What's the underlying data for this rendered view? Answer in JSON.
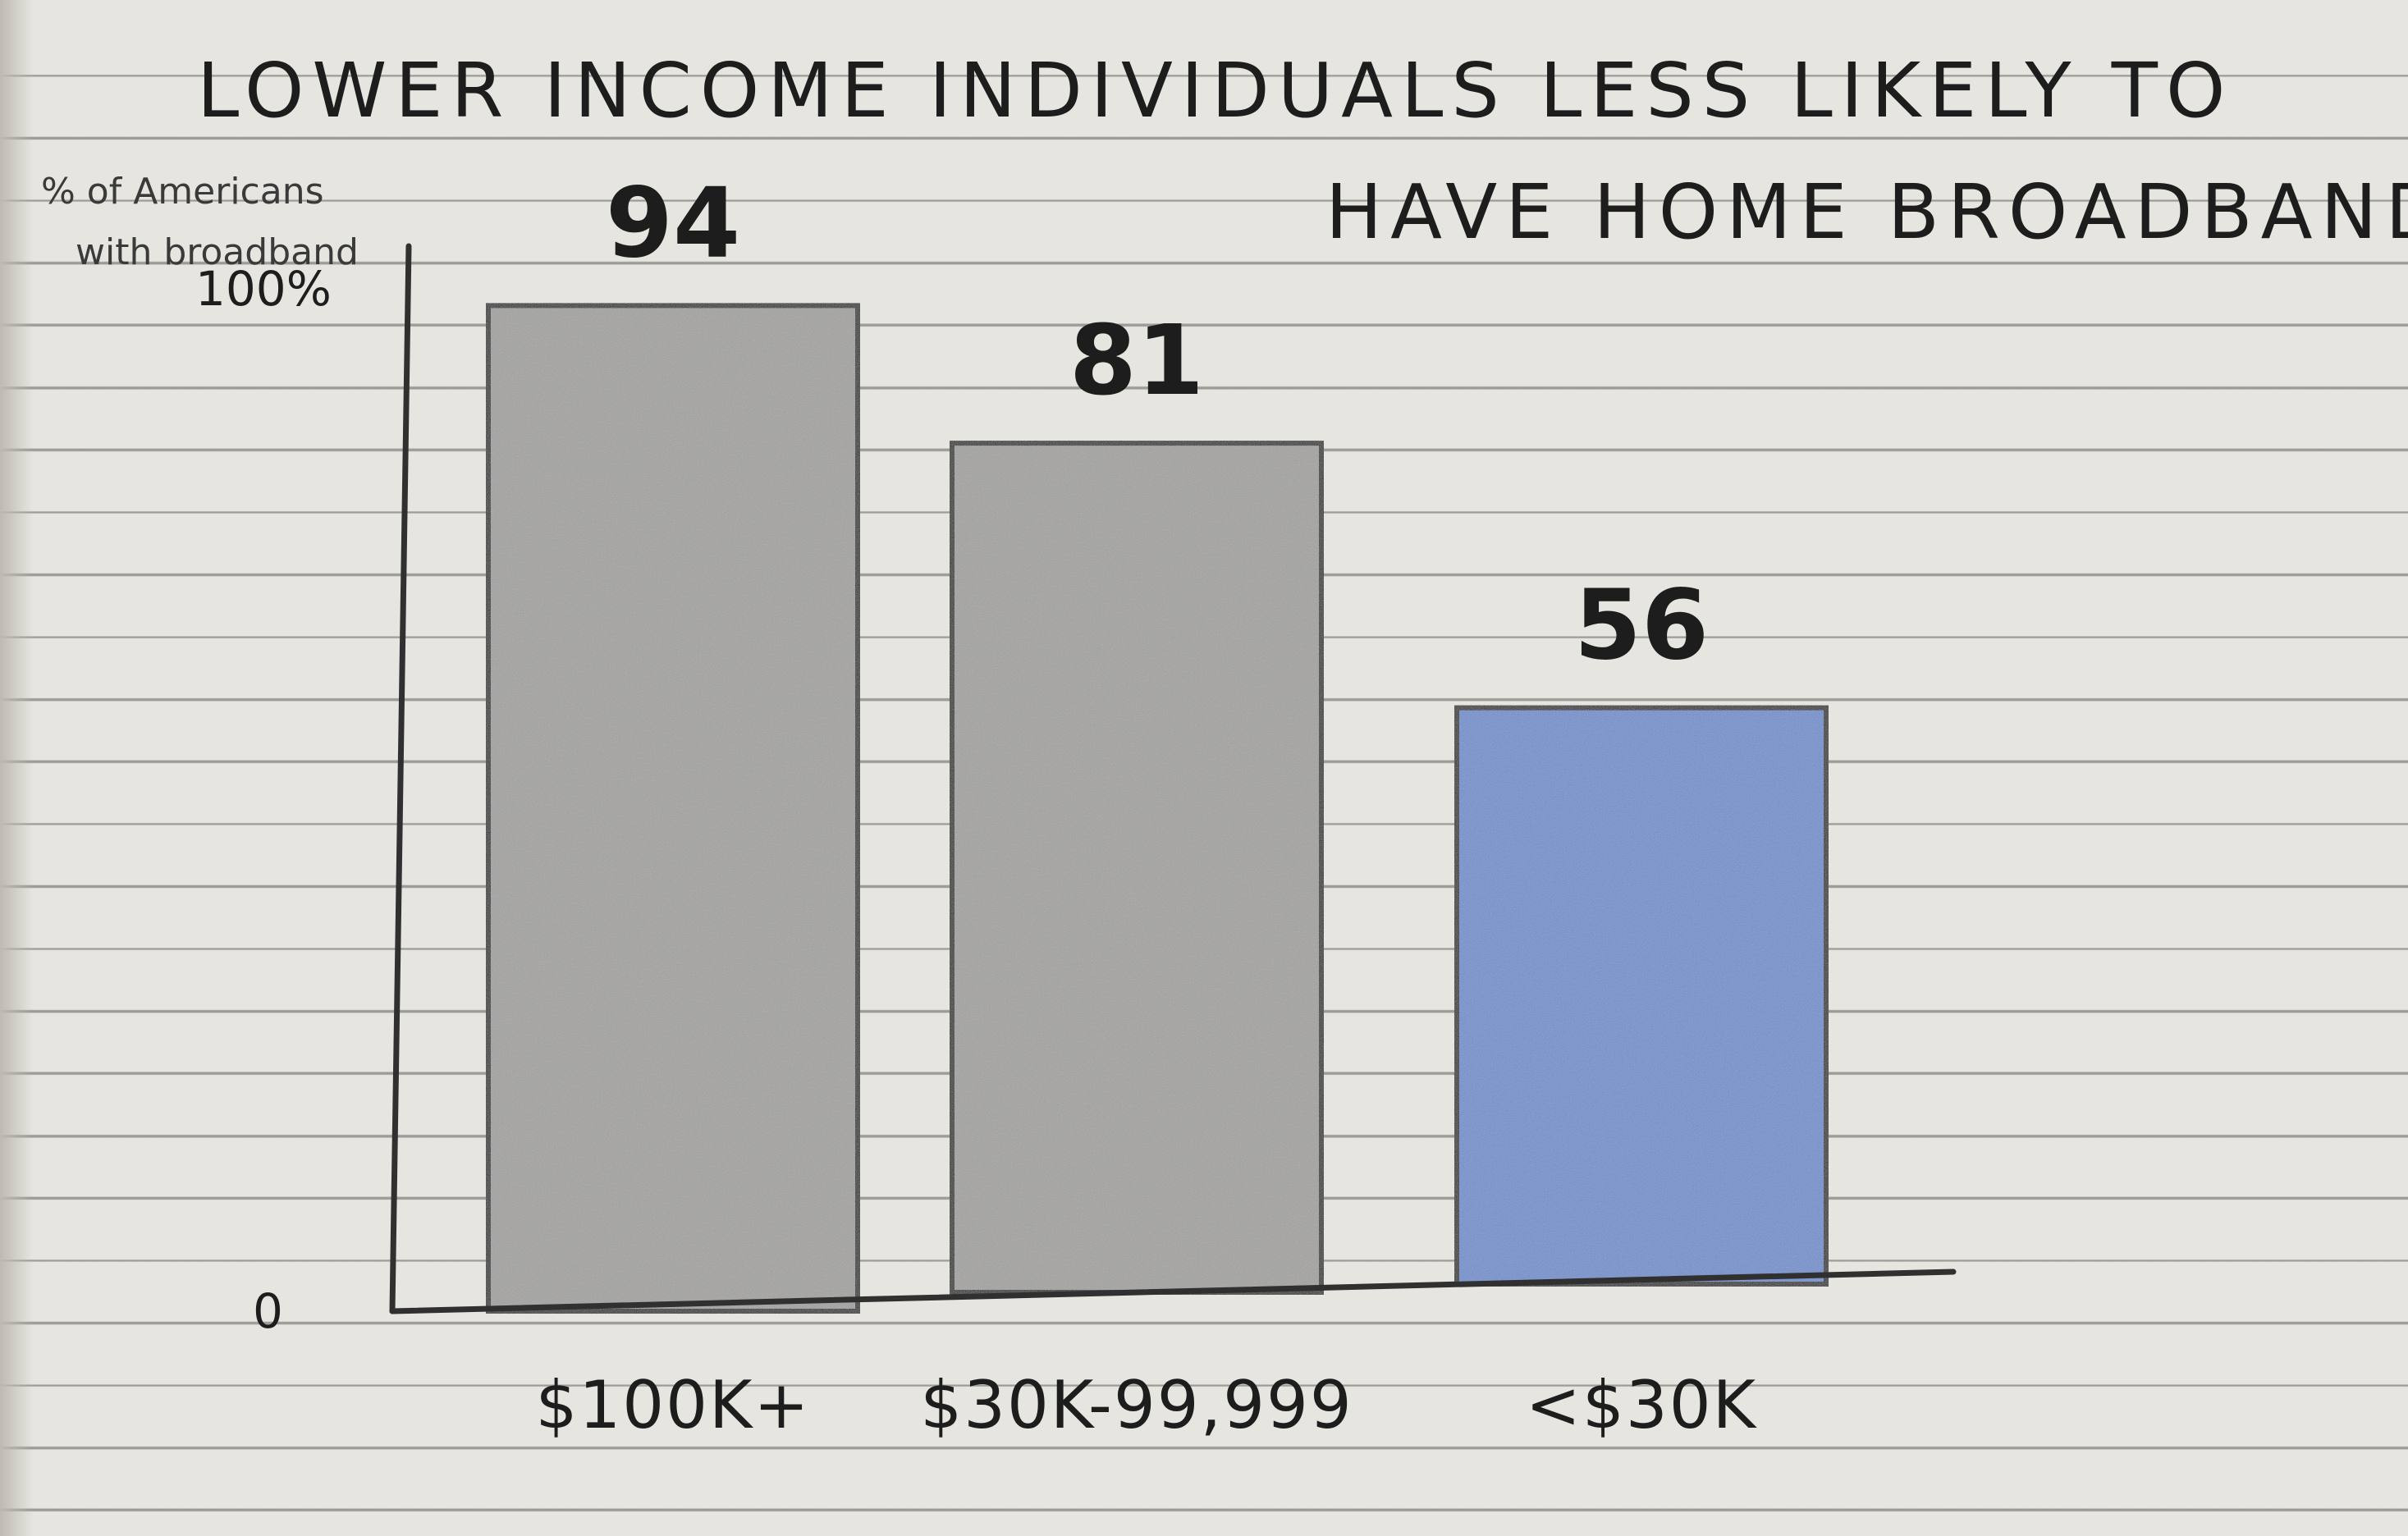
{
  "chart_data": {
    "type": "bar",
    "title_lines": [
      "LOWER INCOME INDIVIDUALS LESS LIKELY TO",
      "HAVE HOME BROADBAND"
    ],
    "ylabel_lines": [
      "% of Americans",
      "with broadband"
    ],
    "y_tick_labels": [
      "100%",
      "0"
    ],
    "ylim": [
      0,
      100
    ],
    "categories": [
      "$100K+",
      "$30K-99,999",
      "<$30K"
    ],
    "values": [
      94,
      81,
      56
    ],
    "value_labels": [
      "94",
      "81",
      "56"
    ],
    "bar_colors": [
      "#a3a2a0",
      "#a3a2a0",
      "#6f8fcf"
    ],
    "grid": false,
    "legend": "none"
  }
}
